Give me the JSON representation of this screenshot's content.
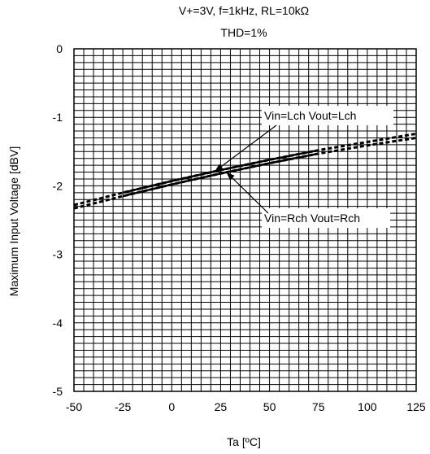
{
  "chart_data": {
    "type": "line",
    "title": "V+=3V, f=1kHz, RL=10kΩ",
    "subtitle": "THD=1%",
    "xlabel": "Ta [ºC]",
    "ylabel": "Maximum Input Voltage [dBV]",
    "xlim": [
      -50,
      125
    ],
    "ylim": [
      -5,
      0
    ],
    "xticks": [
      "-50",
      "-25",
      "0",
      "25",
      "50",
      "75",
      "100",
      "125"
    ],
    "yticks": [
      "0",
      "-1",
      "-2",
      "-3",
      "-4",
      "-5"
    ],
    "grid": true,
    "series": [
      {
        "name": "Vin=Lch Vout=Lch",
        "x": [
          -50,
          -25,
          0,
          25,
          50,
          75,
          100,
          125
        ],
        "y": [
          -2.28,
          -2.1,
          -1.93,
          -1.77,
          -1.62,
          -1.48,
          -1.36,
          -1.24
        ],
        "solid_range": [
          -25,
          75
        ]
      },
      {
        "name": "Vin=Rch Vout=Rch",
        "x": [
          -50,
          -25,
          0,
          25,
          50,
          75,
          100,
          125
        ],
        "y": [
          -2.33,
          -2.15,
          -1.98,
          -1.82,
          -1.67,
          -1.53,
          -1.41,
          -1.3
        ],
        "solid_range": [
          -25,
          75
        ]
      }
    ],
    "annotations": [
      {
        "text": "Vin=Lch Vout=Lch",
        "series": 0,
        "point_x": 22
      },
      {
        "text": "Vin=Rch Vout=Rch",
        "series": 1,
        "point_x": 28
      }
    ]
  }
}
